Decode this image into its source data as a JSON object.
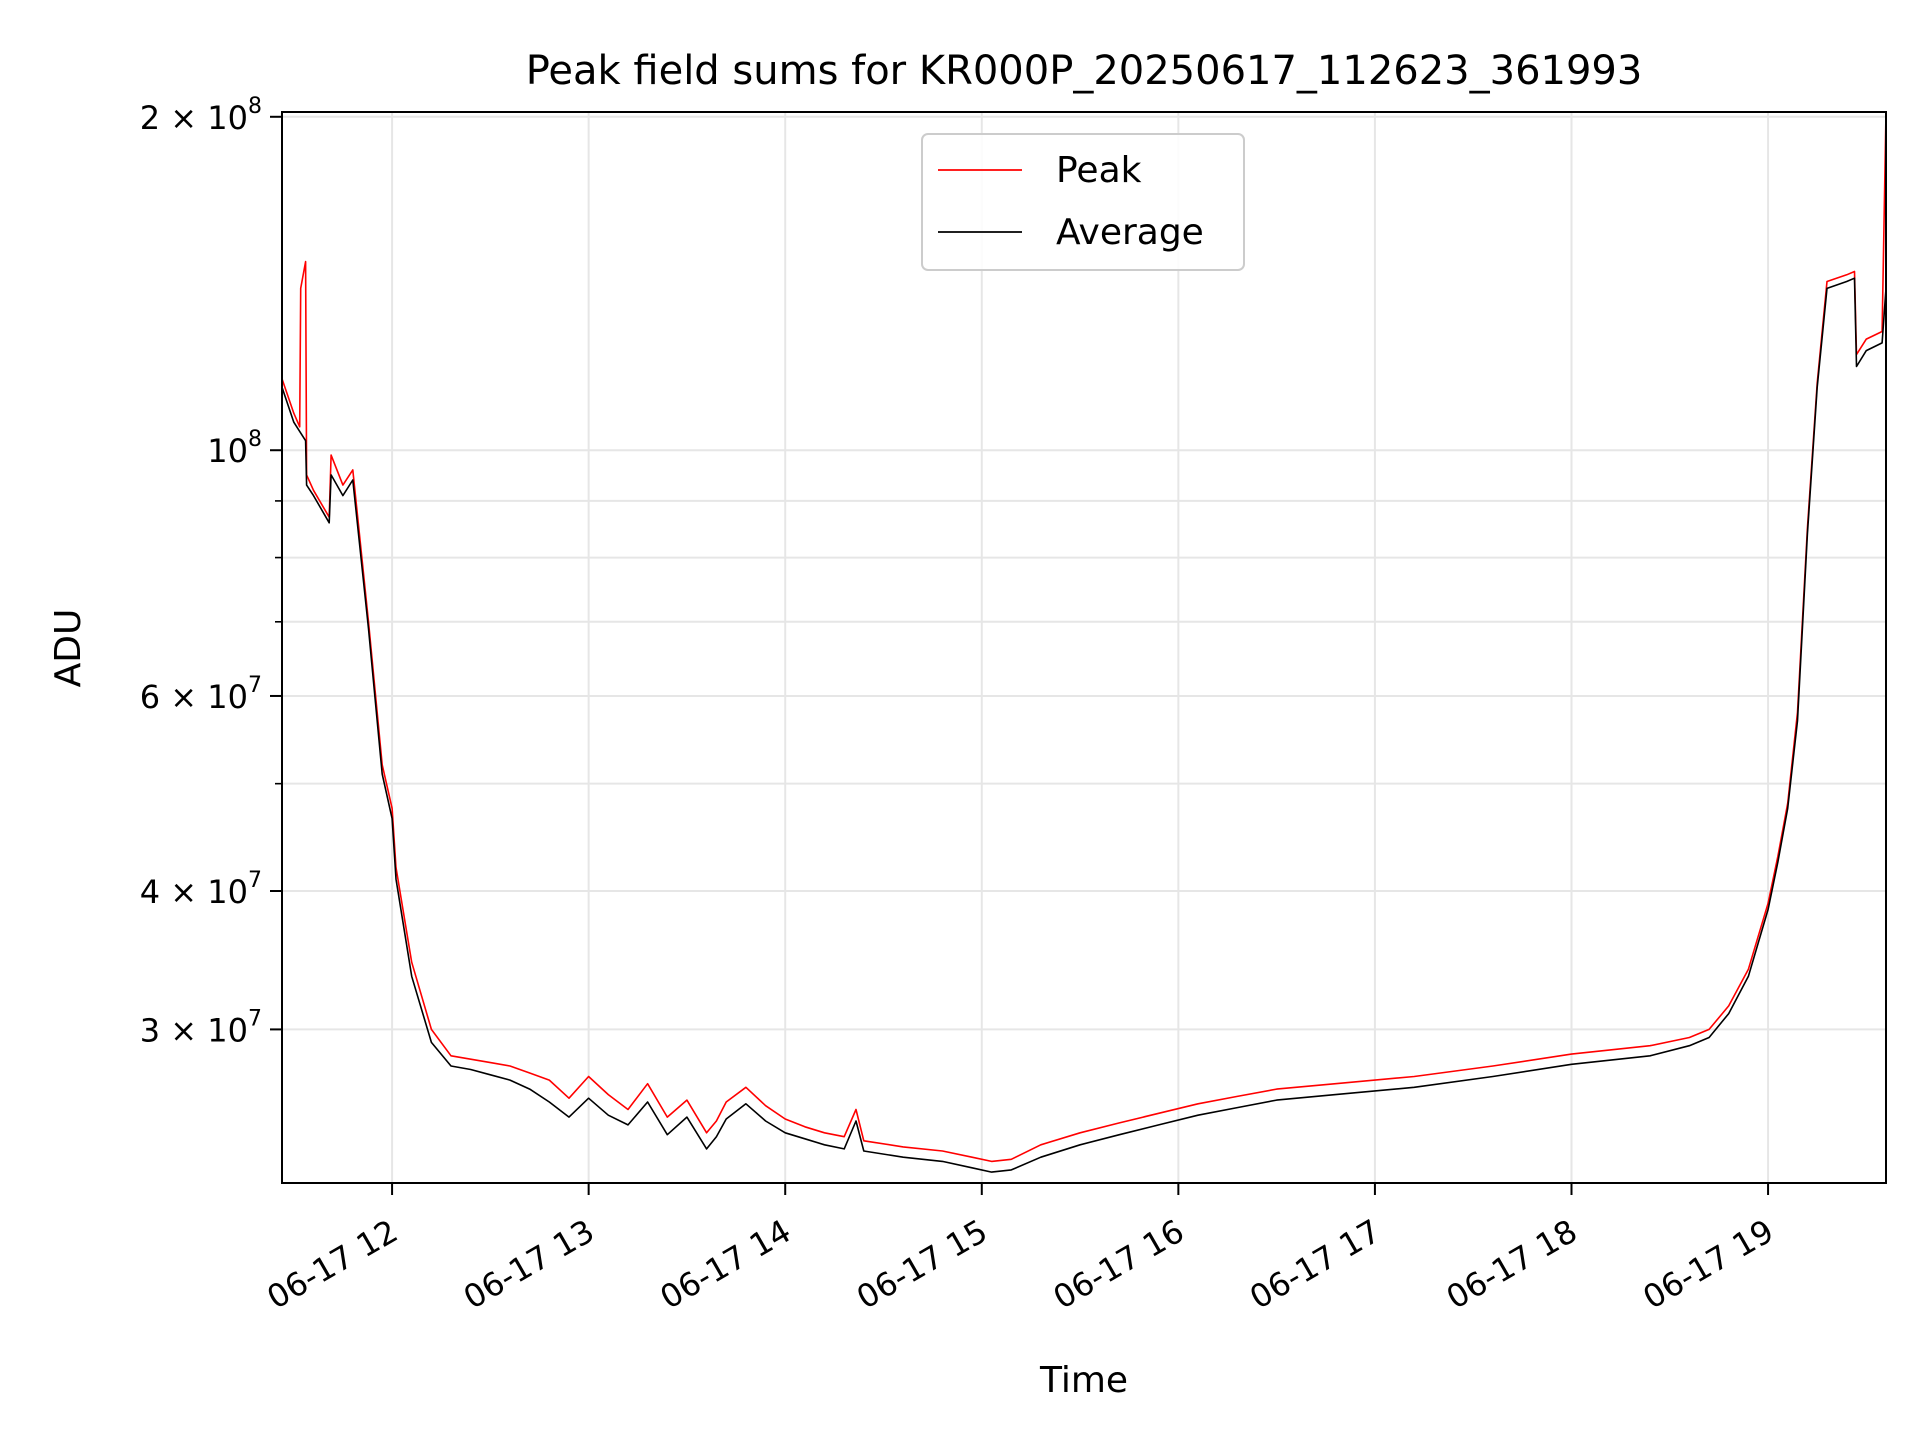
{
  "chart_data": {
    "type": "line",
    "title": "Peak field sums for KR000P_20250617_112623_361993",
    "xlabel": "Time",
    "ylabel": "ADU",
    "x_unit": "hours (06-17)",
    "xlim": [
      11.44,
      19.6
    ],
    "ylim": [
      21800000,
      202000000
    ],
    "yscale": "log",
    "grid": true,
    "legend_position": "upper center",
    "x_tick_labels": [
      {
        "value": 12,
        "label": "06-17 12"
      },
      {
        "value": 13,
        "label": "06-17 13"
      },
      {
        "value": 14,
        "label": "06-17 14"
      },
      {
        "value": 15,
        "label": "06-17 15"
      },
      {
        "value": 16,
        "label": "06-17 16"
      },
      {
        "value": 17,
        "label": "06-17 17"
      },
      {
        "value": 18,
        "label": "06-17 18"
      },
      {
        "value": 19,
        "label": "06-17 19"
      }
    ],
    "y_tick_labels": [
      {
        "value": 30000000,
        "mantissa": "3",
        "base": "10",
        "exponent": "7"
      },
      {
        "value": 40000000,
        "mantissa": "4",
        "base": "10",
        "exponent": "7"
      },
      {
        "value": 60000000,
        "mantissa": "6",
        "base": "10",
        "exponent": "7"
      },
      {
        "value": 100000000,
        "mantissa": "",
        "base": "10",
        "exponent": "8"
      },
      {
        "value": 200000000,
        "mantissa": "2",
        "base": "10",
        "exponent": "8"
      }
    ],
    "y_minor_ticks": [
      50000000,
      70000000,
      80000000,
      90000000
    ],
    "series": [
      {
        "name": "Peak",
        "color": "#ff0000",
        "x": [
          11.44,
          11.5,
          11.53,
          11.535,
          11.56,
          11.565,
          11.6,
          11.68,
          11.69,
          11.75,
          11.8,
          11.88,
          11.95,
          12.0,
          12.02,
          12.1,
          12.2,
          12.3,
          12.4,
          12.5,
          12.6,
          12.7,
          12.8,
          12.9,
          13.0,
          13.1,
          13.2,
          13.3,
          13.4,
          13.5,
          13.6,
          13.65,
          13.7,
          13.8,
          13.9,
          14.0,
          14.1,
          14.2,
          14.3,
          14.36,
          14.4,
          14.6,
          14.8,
          14.95,
          15.05,
          15.15,
          15.3,
          15.5,
          15.7,
          15.9,
          16.1,
          16.3,
          16.5,
          16.8,
          17.2,
          17.6,
          18.0,
          18.4,
          18.6,
          18.7,
          18.8,
          18.9,
          19.0,
          19.05,
          19.1,
          19.15,
          19.2,
          19.25,
          19.3,
          19.4,
          19.44,
          19.45,
          19.5,
          19.58,
          19.6
        ],
        "y": [
          116000000,
          108000000,
          105000000,
          140000000,
          148000000,
          95000000,
          92000000,
          87000000,
          99000000,
          93000000,
          96000000,
          70000000,
          52000000,
          47500000,
          42000000,
          34500000,
          30000000,
          28400000,
          28200000,
          28000000,
          27800000,
          27400000,
          27000000,
          26000000,
          27200000,
          26200000,
          25400000,
          26800000,
          25000000,
          25900000,
          24200000,
          24800000,
          25800000,
          26600000,
          25600000,
          24900000,
          24500000,
          24200000,
          24000000,
          25400000,
          23800000,
          23500000,
          23300000,
          23000000,
          22800000,
          22900000,
          23600000,
          24200000,
          24700000,
          25200000,
          25700000,
          26100000,
          26500000,
          26800000,
          27200000,
          27800000,
          28500000,
          29000000,
          29500000,
          30000000,
          31500000,
          34000000,
          39000000,
          43000000,
          48000000,
          58000000,
          85000000,
          115000000,
          142000000,
          144000000,
          145000000,
          122000000,
          126000000,
          128000000,
          202000000
        ]
      },
      {
        "name": "Average",
        "color": "#000000",
        "x": [
          11.44,
          11.5,
          11.56,
          11.565,
          11.6,
          11.68,
          11.69,
          11.75,
          11.8,
          11.88,
          11.95,
          12.0,
          12.02,
          12.1,
          12.2,
          12.3,
          12.4,
          12.5,
          12.6,
          12.7,
          12.8,
          12.9,
          13.0,
          13.1,
          13.2,
          13.3,
          13.4,
          13.5,
          13.6,
          13.65,
          13.7,
          13.8,
          13.9,
          14.0,
          14.1,
          14.2,
          14.3,
          14.36,
          14.4,
          14.6,
          14.8,
          14.95,
          15.05,
          15.15,
          15.3,
          15.5,
          15.7,
          15.9,
          16.1,
          16.3,
          16.5,
          16.8,
          17.2,
          17.6,
          18.0,
          18.4,
          18.6,
          18.7,
          18.8,
          18.9,
          19.0,
          19.05,
          19.1,
          19.15,
          19.2,
          19.25,
          19.3,
          19.4,
          19.44,
          19.45,
          19.5,
          19.58,
          19.6
        ],
        "y": [
          114000000,
          106000000,
          102000000,
          93000000,
          91000000,
          86000000,
          95000000,
          91000000,
          94000000,
          69000000,
          51000000,
          46500000,
          41000000,
          33500000,
          29200000,
          27800000,
          27600000,
          27300000,
          27000000,
          26500000,
          25800000,
          25000000,
          26000000,
          25100000,
          24600000,
          25800000,
          24100000,
          25000000,
          23400000,
          24000000,
          24900000,
          25700000,
          24800000,
          24200000,
          23900000,
          23600000,
          23400000,
          24800000,
          23300000,
          23000000,
          22800000,
          22500000,
          22300000,
          22400000,
          23000000,
          23600000,
          24100000,
          24600000,
          25100000,
          25500000,
          25900000,
          26200000,
          26600000,
          27200000,
          27900000,
          28400000,
          29000000,
          29500000,
          31000000,
          33500000,
          38500000,
          42500000,
          47500000,
          57000000,
          84000000,
          114000000,
          140000000,
          142000000,
          143000000,
          119000000,
          123000000,
          125000000,
          140000000
        ]
      }
    ]
  }
}
